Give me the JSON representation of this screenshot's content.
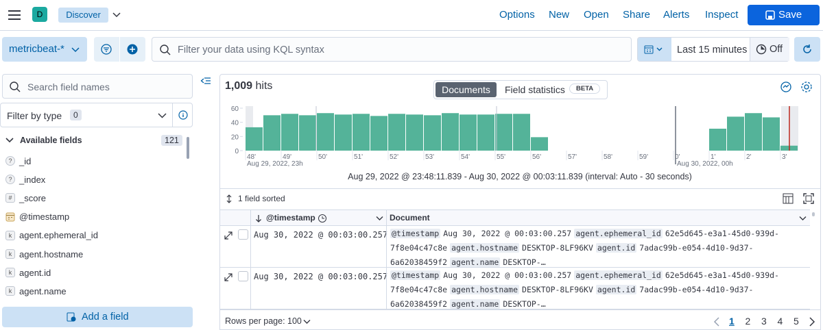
{
  "header": {
    "avatar": "D",
    "app": "Discover",
    "menu": [
      "Options",
      "New",
      "Open",
      "Share",
      "Alerts",
      "Inspect"
    ],
    "save": "Save"
  },
  "query_bar": {
    "data_view": "metricbeat-*",
    "search_placeholder": "Filter your data using KQL syntax",
    "time_range": "Last 15 minutes",
    "refresh": "Off"
  },
  "sidebar": {
    "search_placeholder": "Search field names",
    "filter_label": "Filter by type",
    "filter_count": 0,
    "section": "Available fields",
    "field_count": 121,
    "fields": [
      {
        "icon": "?",
        "name": "_id"
      },
      {
        "icon": "?",
        "name": "_index"
      },
      {
        "icon": "#",
        "name": "_score"
      },
      {
        "name": "@timestamp"
      },
      {
        "icon": "k",
        "name": "agent.ephemeral_id"
      },
      {
        "icon": "k",
        "name": "agent.hostname"
      },
      {
        "icon": "k",
        "name": "agent.id"
      },
      {
        "icon": "k",
        "name": "agent.name"
      }
    ],
    "add_field": "Add a field"
  },
  "results": {
    "hits": "1,009",
    "hits_label": "hits",
    "tabs": [
      "Documents",
      "Field statistics"
    ],
    "beta": "BETA",
    "histogram": {
      "type": "bar",
      "ylim": [
        0,
        60
      ],
      "yticks": [
        0,
        20,
        40,
        60
      ],
      "color": "#54b399",
      "values": [
        33,
        50,
        52,
        50,
        53,
        51,
        52,
        49,
        52,
        51,
        50,
        53,
        51,
        51,
        52,
        52,
        19,
        0,
        0,
        0,
        0,
        0,
        0,
        0,
        0,
        0,
        31,
        48,
        53,
        47,
        7
      ],
      "xtick_labels": [
        "48'",
        "49'",
        "50'",
        "51'",
        "52'",
        "53'",
        "54'",
        "55'",
        "56'",
        "57'",
        "58'",
        "59'",
        "0'",
        "1'",
        "2'",
        "3'"
      ],
      "xsub_labels": [
        "Aug 29, 2022, 23h",
        "Aug 30, 2022, 00h"
      ],
      "range": "Aug 29, 2022 @ 23:48:11.839 - Aug 30, 2022 @ 00:03:11.839 (interval: Auto - 30 seconds)"
    },
    "sort": "1 field sorted",
    "columns": [
      "@timestamp",
      "Document"
    ],
    "rows": [
      {
        "timestamp": "Aug 30, 2022 @ 00:03:00.257",
        "document": [
          {
            "key": "@timestamp",
            "value": "Aug 30, 2022 @ 00:03:00.257"
          },
          {
            "key": "agent.ephemeral_id",
            "value": "62e5d645-e3a1-45d0-939d-7f8e04c47c8e"
          },
          {
            "key": "agent.hostname",
            "value": "DESKTOP-8LF96KV"
          },
          {
            "key": "agent.id",
            "value": "7adac99b-e054-4d10-9d37-6a62038459f2"
          },
          {
            "key": "agent.name",
            "value": "DESKTOP-…"
          }
        ]
      },
      {
        "timestamp": "Aug 30, 2022 @ 00:03:00.257",
        "document": [
          {
            "key": "@timestamp",
            "value": "Aug 30, 2022 @ 00:03:00.257"
          },
          {
            "key": "agent.ephemeral_id",
            "value": "62e5d645-e3a1-45d0-939d-7f8e04c47c8e"
          },
          {
            "key": "agent.hostname",
            "value": "DESKTOP-8LF96KV"
          },
          {
            "key": "agent.id",
            "value": "7adac99b-e054-4d10-9d37-6a62038459f2"
          },
          {
            "key": "agent.name",
            "value": "DESKTOP-…"
          }
        ]
      }
    ],
    "rows_per_page": "Rows per page: 100",
    "pages": [
      1,
      2,
      3,
      4,
      5
    ]
  }
}
